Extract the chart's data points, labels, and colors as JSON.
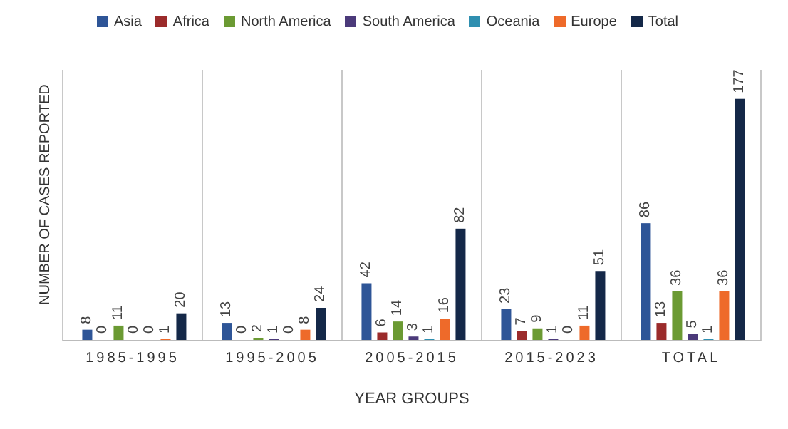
{
  "chart_data": {
    "type": "bar",
    "xlabel": "YEAR GROUPS",
    "ylabel": "NUMBER OF CASES REPORTED",
    "categories": [
      "1985-1995",
      "1995-2005",
      "2005-2015",
      "2015-2023",
      "TOTAL"
    ],
    "series": [
      {
        "name": "Asia",
        "color": "#2e5597",
        "values": [
          8,
          13,
          42,
          23,
          86
        ]
      },
      {
        "name": "Africa",
        "color": "#9b2b2b",
        "values": [
          0,
          0,
          6,
          7,
          13
        ]
      },
      {
        "name": "North America",
        "color": "#6b9a33",
        "values": [
          11,
          2,
          14,
          9,
          36
        ]
      },
      {
        "name": "South America",
        "color": "#4b3a7a",
        "values": [
          0,
          1,
          3,
          1,
          5
        ]
      },
      {
        "name": "Oceania",
        "color": "#2f8fb0",
        "values": [
          0,
          0,
          1,
          0,
          1
        ]
      },
      {
        "name": "Europe",
        "color": "#ee6a2a",
        "values": [
          1,
          8,
          16,
          11,
          36
        ]
      },
      {
        "name": "Total",
        "color": "#142848",
        "values": [
          20,
          24,
          82,
          51,
          177
        ]
      }
    ],
    "data_labels": true,
    "grid": "x",
    "legend": "top",
    "tick_labels": "x"
  }
}
